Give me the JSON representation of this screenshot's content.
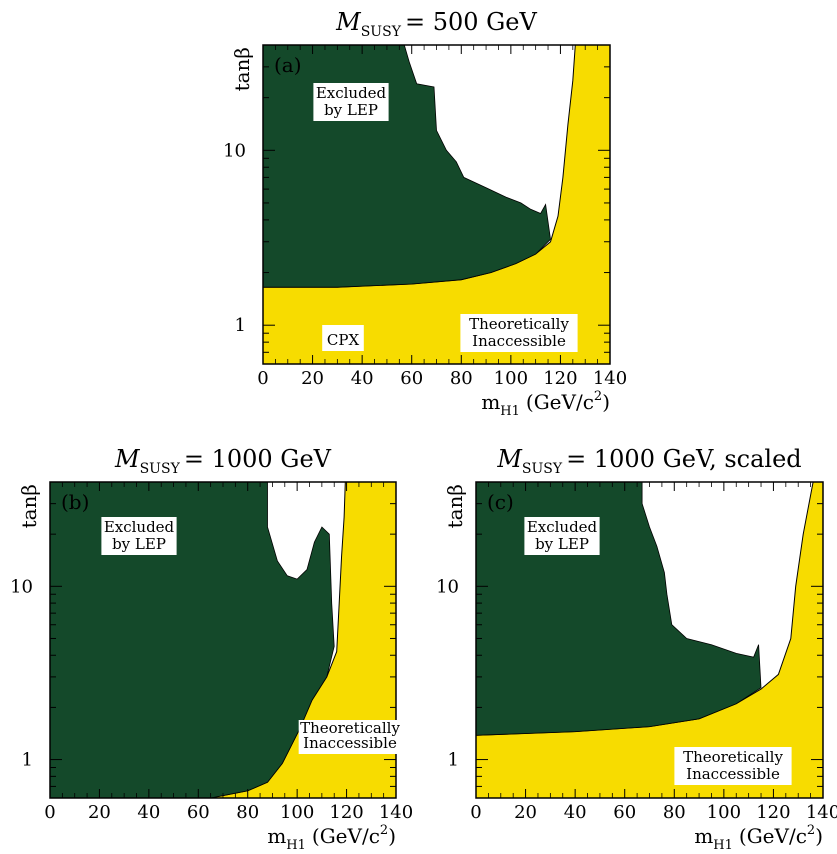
{
  "chart_data": [
    {
      "type": "region-map",
      "title": "M_SUSY = 500 GeV",
      "title_var": "M",
      "title_sub": "SUSY",
      "title_rest": "= 500 GeV",
      "panel_label": "(a)",
      "xlabel_main": "m",
      "xlabel_sub": "H1",
      "xlabel_unit": "(GeV/c",
      "xlabel_sup": "2",
      "xlabel_close": ")",
      "ylabel": "tanβ",
      "xlim": [
        0,
        140
      ],
      "ylim": [
        0.6,
        40
      ],
      "yscale": "log",
      "xticks": [
        "0",
        "20",
        "40",
        "60",
        "80",
        "100",
        "120",
        "140"
      ],
      "yticks": [
        "1",
        "10"
      ],
      "annotations": [
        {
          "lines": [
            "Excluded",
            "by LEP"
          ]
        },
        {
          "lines": [
            "Theoretically",
            "Inaccessible"
          ]
        },
        {
          "lines": [
            "CPX"
          ]
        }
      ],
      "colors": {
        "theory": "#f7dc00",
        "excluded": "#14492a",
        "expected": "#0c9a48"
      },
      "regions": {
        "theory": [
          [
            0,
            0.6
          ],
          [
            0,
            1.65
          ],
          [
            30,
            1.65
          ],
          [
            60,
            1.72
          ],
          [
            80,
            1.82
          ],
          [
            92,
            2.0
          ],
          [
            102,
            2.25
          ],
          [
            110,
            2.55
          ],
          [
            116,
            3.0
          ],
          [
            119,
            4.2
          ],
          [
            121,
            7
          ],
          [
            123,
            14
          ],
          [
            125,
            25
          ],
          [
            126,
            40
          ],
          [
            140,
            40
          ],
          [
            140,
            0.6
          ]
        ],
        "excluded": [
          [
            0,
            1.65
          ],
          [
            0,
            40
          ],
          [
            57,
            40
          ],
          [
            59,
            32
          ],
          [
            62,
            24
          ],
          [
            69,
            23
          ],
          [
            70,
            13
          ],
          [
            74,
            10
          ],
          [
            78,
            8.6
          ],
          [
            81,
            7
          ],
          [
            90,
            6.1
          ],
          [
            98,
            5.4
          ],
          [
            104,
            5
          ],
          [
            108,
            4.6
          ],
          [
            112,
            4.35
          ],
          [
            114,
            4.9
          ],
          [
            116,
            3.1
          ],
          [
            110,
            2.55
          ],
          [
            102,
            2.25
          ],
          [
            92,
            2.0
          ],
          [
            80,
            1.82
          ],
          [
            60,
            1.72
          ],
          [
            30,
            1.65
          ]
        ]
      },
      "contours": []
    },
    {
      "type": "region-map",
      "title": "M_SUSY = 1000 GeV",
      "title_var": "M",
      "title_sub": "SUSY",
      "title_rest": "= 1000 GeV",
      "panel_label": "(b)",
      "xlabel_main": "m",
      "xlabel_sub": "H1",
      "xlabel_unit": "(GeV/c",
      "xlabel_sup": "2",
      "xlabel_close": ")",
      "ylabel": "tanβ",
      "xlim": [
        0,
        140
      ],
      "ylim": [
        0.6,
        40
      ],
      "yscale": "log",
      "xticks": [
        "0",
        "20",
        "40",
        "60",
        "80",
        "100",
        "120",
        "140"
      ],
      "yticks": [
        "1",
        "10"
      ],
      "annotations": [
        {
          "lines": [
            "Excluded",
            "by LEP"
          ]
        },
        {
          "lines": [
            "Theoretically",
            "Inaccessible"
          ]
        }
      ],
      "colors": {
        "theory": "#f7dc00",
        "excluded": "#14492a",
        "expected": "#0c9a48"
      },
      "regions": {
        "theory": [
          [
            65,
            0.6
          ],
          [
            80,
            0.66
          ],
          [
            88,
            0.74
          ],
          [
            94,
            0.95
          ],
          [
            101,
            1.5
          ],
          [
            106,
            2.2
          ],
          [
            112,
            3.0
          ],
          [
            116,
            4.2
          ],
          [
            117,
            8
          ],
          [
            118,
            15
          ],
          [
            119,
            25
          ],
          [
            119.5,
            40
          ],
          [
            140,
            40
          ],
          [
            140,
            0.6
          ]
        ],
        "excluded": [
          [
            0,
            0.6
          ],
          [
            0,
            40
          ],
          [
            88,
            40
          ],
          [
            88,
            22
          ],
          [
            92,
            14
          ],
          [
            96,
            11.5
          ],
          [
            100,
            11
          ],
          [
            104,
            12.5
          ],
          [
            107,
            18
          ],
          [
            110,
            22
          ],
          [
            113,
            20
          ],
          [
            114,
            8
          ],
          [
            115,
            4.5
          ],
          [
            112,
            3.0
          ],
          [
            106,
            2.2
          ],
          [
            101,
            1.5
          ],
          [
            94,
            0.95
          ],
          [
            88,
            0.74
          ],
          [
            80,
            0.66
          ],
          [
            65,
            0.6
          ]
        ]
      },
      "contours": []
    },
    {
      "type": "region-map",
      "title": "M_SUSY = 1000 GeV, scaled",
      "title_var": "M",
      "title_sub": "SUSY",
      "title_rest": "= 1000 GeV, scaled",
      "panel_label": "(c)",
      "xlabel_main": "m",
      "xlabel_sub": "H1",
      "xlabel_unit": "(GeV/c",
      "xlabel_sup": "2",
      "xlabel_close": ")",
      "ylabel": "tanβ",
      "xlim": [
        0,
        140
      ],
      "ylim": [
        0.6,
        40
      ],
      "yscale": "log",
      "xticks": [
        "0",
        "20",
        "40",
        "60",
        "80",
        "100",
        "120",
        "140"
      ],
      "yticks": [
        "1",
        "10"
      ],
      "annotations": [
        {
          "lines": [
            "Excluded",
            "by LEP"
          ]
        },
        {
          "lines": [
            "Theoretically",
            "Inaccessible"
          ]
        }
      ],
      "colors": {
        "theory": "#f7dc00",
        "excluded": "#14492a",
        "expected": "#0c9a48"
      },
      "regions": {
        "theory": [
          [
            0,
            0.6
          ],
          [
            0,
            1.38
          ],
          [
            40,
            1.45
          ],
          [
            70,
            1.55
          ],
          [
            90,
            1.72
          ],
          [
            105,
            2.1
          ],
          [
            115,
            2.55
          ],
          [
            122,
            3.1
          ],
          [
            127,
            5
          ],
          [
            129,
            10
          ],
          [
            132,
            20
          ],
          [
            136,
            40
          ],
          [
            140,
            40
          ],
          [
            140,
            0.6
          ]
        ],
        "excluded": [
          [
            0,
            1.38
          ],
          [
            0,
            40
          ],
          [
            67,
            40
          ],
          [
            67,
            30
          ],
          [
            70,
            22
          ],
          [
            73,
            17
          ],
          [
            76,
            12
          ],
          [
            77,
            9
          ],
          [
            79,
            6
          ],
          [
            85,
            5
          ],
          [
            95,
            4.6
          ],
          [
            105,
            4.1
          ],
          [
            112,
            3.9
          ],
          [
            114,
            4.6
          ],
          [
            115,
            2.6
          ],
          [
            105,
            2.1
          ],
          [
            90,
            1.72
          ],
          [
            70,
            1.55
          ],
          [
            40,
            1.45
          ]
        ]
      },
      "contours": []
    }
  ]
}
